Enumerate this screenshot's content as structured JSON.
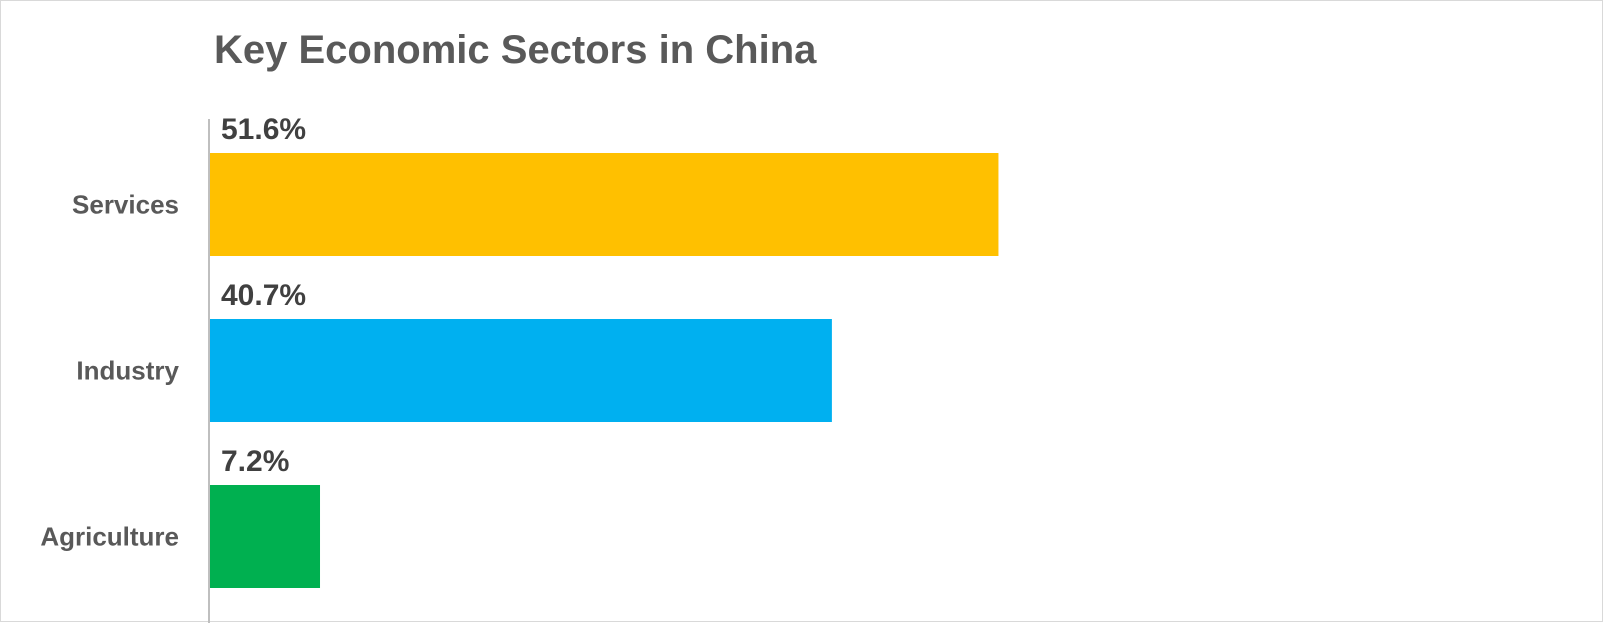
{
  "chart_data": {
    "type": "bar",
    "orientation": "horizontal",
    "title": "Key Economic Sectors in China",
    "categories": [
      "Services",
      "Industry",
      "Agriculture"
    ],
    "values": [
      51.6,
      40.7,
      7.2
    ],
    "data_labels": [
      "51.6%",
      "40.7%",
      "7.2%"
    ],
    "colors": [
      "#FFC000",
      "#00B0F0",
      "#00B050"
    ],
    "xlim": [
      0,
      100
    ],
    "unit": "%",
    "grid": false,
    "legend": "none"
  }
}
